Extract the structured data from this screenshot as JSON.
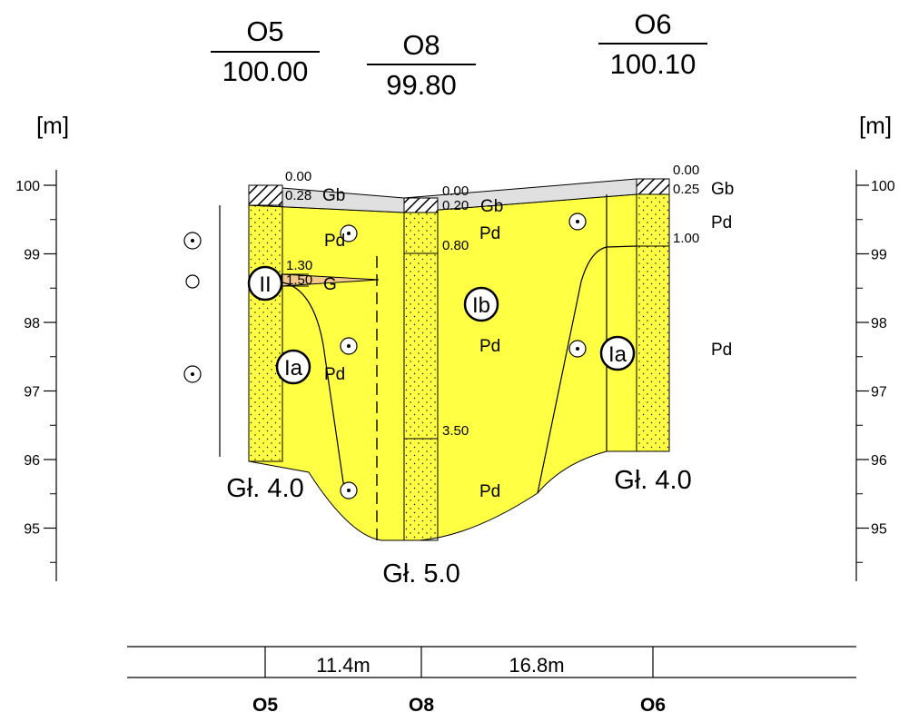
{
  "colors": {
    "sand": "#ffff44",
    "topsoil": "#e0e0e0",
    "gravel": "#f2c98a",
    "ink": "#000000"
  },
  "unit_label": "[m]",
  "axis_ticks": [
    {
      "value": 100,
      "label": "100"
    },
    {
      "value": 99,
      "label": "99"
    },
    {
      "value": 98,
      "label": "98"
    },
    {
      "value": 97,
      "label": "97"
    },
    {
      "value": 96,
      "label": "96"
    },
    {
      "value": 95,
      "label": "95"
    }
  ],
  "boreholes": [
    {
      "id": "O5",
      "elevation": "100.00",
      "depth_label": "Gł. 4.0",
      "top_depth": "0.00",
      "layer_depth": "0.28",
      "layer_code": "Gb"
    },
    {
      "id": "O8",
      "elevation": "99.80",
      "depth_label": "Gł. 5.0",
      "top_depth": "0.00",
      "layer_depth": "0.20",
      "layer_code": "Gb"
    },
    {
      "id": "O6",
      "elevation": "100.10",
      "depth_label": "Gł. 4.0",
      "top_depth": "0.00",
      "layer_depth": "0.25",
      "layer_code": "Gb"
    }
  ],
  "soil_labels": {
    "pd": "Pd",
    "g": "G",
    "gravel_top": "1.30",
    "gravel_bottom": "1.50",
    "o8_water": "0.80",
    "o8_change": "3.50",
    "o6_change": "1.00"
  },
  "zones": {
    "ii": "II",
    "ia": "Ia",
    "ib": "Ib"
  },
  "distances": [
    "11.4m",
    "16.8m"
  ]
}
